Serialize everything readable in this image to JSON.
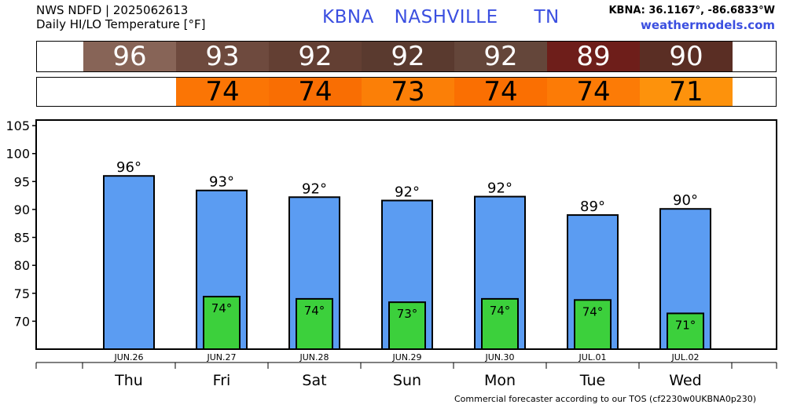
{
  "header": {
    "source_line": "NWS NDFD | 2025062613",
    "product_line": "Daily HI/LO Temperature [°F]",
    "station_id": "KBNA",
    "station_name": "NASHVILLE",
    "state": "TN",
    "coords": "KBNA: 36.1167°, -86.6833°W",
    "site": "weathermodels.com"
  },
  "strips": {
    "high": {
      "values": [
        "96",
        "93",
        "92",
        "92",
        "92",
        "89",
        "90"
      ],
      "colors": [
        "#876457",
        "#6e4a3e",
        "#633f33",
        "#5a3a2f",
        "#64463a",
        "#6e1e1a",
        "#5a2e24"
      ]
    },
    "low": {
      "values": [
        "",
        "74",
        "74",
        "73",
        "74",
        "74",
        "71"
      ],
      "colors": [
        "#ffffff",
        "#fb7505",
        "#f96e03",
        "#fb7f07",
        "#fa6f02",
        "#fc7b06",
        "#fd920c"
      ]
    }
  },
  "chart_data": {
    "type": "bar",
    "categories": [
      "Thu",
      "Fri",
      "Sat",
      "Sun",
      "Mon",
      "Tue",
      "Wed"
    ],
    "dates": [
      "JUN.26",
      "JUN.27",
      "JUN.28",
      "JUN.29",
      "JUN.30",
      "JUL.01",
      "JUL.02"
    ],
    "series": [
      {
        "values": [
          96,
          93.4,
          92.2,
          91.6,
          92.3,
          89,
          90.1
        ],
        "labels": [
          "96°",
          "93°",
          "92°",
          "92°",
          "92°",
          "89°",
          "90°"
        ],
        "color": "#5b9cf2"
      },
      {
        "values": [
          null,
          74.4,
          74,
          73.4,
          74,
          73.8,
          71.4
        ],
        "labels": [
          "",
          "74°",
          "74°",
          "73°",
          "74°",
          "74°",
          "71°"
        ],
        "color": "#3cd03c"
      }
    ],
    "yticks": [
      70,
      75,
      80,
      85,
      90,
      95,
      100,
      105
    ],
    "ylim": [
      65,
      106
    ],
    "grid": false
  },
  "footer": "Commercial forecaster according to our TOS (cf2230w0UKBNA0p230)"
}
